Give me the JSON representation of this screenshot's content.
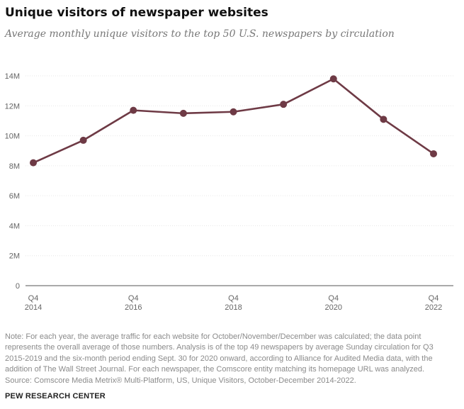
{
  "title": "Unique visitors of newspaper websites",
  "subtitle": "Average monthly unique visitors to the top 50 U.S. newspapers by circulation",
  "chart_data": {
    "type": "line",
    "x": [
      2014,
      2015,
      2016,
      2017,
      2018,
      2019,
      2020,
      2021,
      2022
    ],
    "series": [
      {
        "values": [
          8200000,
          9700000,
          11700000,
          11500000,
          11600000,
          12100000,
          13800000,
          11100000,
          8800000
        ]
      }
    ],
    "x_tick_labels": [
      {
        "x": 2014,
        "line1": "Q4",
        "line2": "2014"
      },
      {
        "x": 2016,
        "line1": "Q4",
        "line2": "2016"
      },
      {
        "x": 2018,
        "line1": "Q4",
        "line2": "2018"
      },
      {
        "x": 2020,
        "line1": "Q4",
        "line2": "2020"
      },
      {
        "x": 2022,
        "line1": "Q4",
        "line2": "2022"
      }
    ],
    "y_ticks": [
      {
        "value": 0,
        "label": "0"
      },
      {
        "value": 2000000,
        "label": "2M"
      },
      {
        "value": 4000000,
        "label": "4M"
      },
      {
        "value": 6000000,
        "label": "6M"
      },
      {
        "value": 8000000,
        "label": "8M"
      },
      {
        "value": 10000000,
        "label": "10M"
      },
      {
        "value": 12000000,
        "label": "12M"
      },
      {
        "value": 14000000,
        "label": "14M"
      }
    ],
    "ylim": [
      0,
      14000000
    ],
    "xlim": [
      2014,
      2022
    ],
    "grid": true,
    "legend": "none",
    "line_color": "#6e3a45"
  },
  "note_lines": [
    "Note: For each year, the average traffic for each website for October/November/December was calculated; the data point",
    "represents the overall average of those numbers. Analysis is of the top 49 newspapers by average Sunday circulation for Q3",
    "2015-2019 and the six-month period ending Sept. 30 for 2020 onward, according to Alliance for Audited Media data, with the",
    "addition of The Wall Street Journal. For each newspaper, the Comscore entity matching its homepage URL was analyzed.",
    "Source: Comscore Media Metrix® Multi-Platform, US, Unique Visitors, October-December 2014-2022."
  ],
  "footer": "PEW RESEARCH CENTER"
}
